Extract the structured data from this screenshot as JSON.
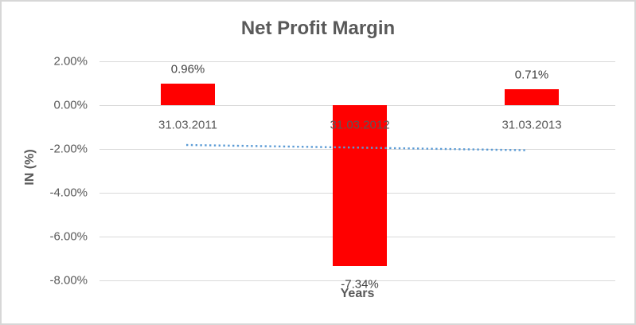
{
  "chart_data": {
    "type": "bar",
    "title": "Net Profit Margin",
    "categories": [
      "31.03.2011",
      "31.03.2012",
      "31.03.2013"
    ],
    "values": [
      0.96,
      -7.34,
      0.71
    ],
    "data_labels": [
      "0.96%",
      "-7.34%",
      "0.71%"
    ],
    "xlabel": "Years",
    "ylabel": "IN (%)",
    "ylim": [
      -8,
      2
    ],
    "ytick_step": 2,
    "ytick_labels": [
      "2.00%",
      "0.00%",
      "-2.00%",
      "-4.00%",
      "-6.00%",
      "-8.00%"
    ],
    "grid": true,
    "legend": "none",
    "bar_color": "#ff0000",
    "label_color": "#404040",
    "axis_text_color": "#595959",
    "gridline_color": "#d9d9d9",
    "background_color": "#ffffff",
    "border_color": "#d7d7d7",
    "trendline": {
      "style": "dotted",
      "color": "#5b9bd5",
      "start_value": -1.83,
      "end_value": -2.07
    }
  }
}
